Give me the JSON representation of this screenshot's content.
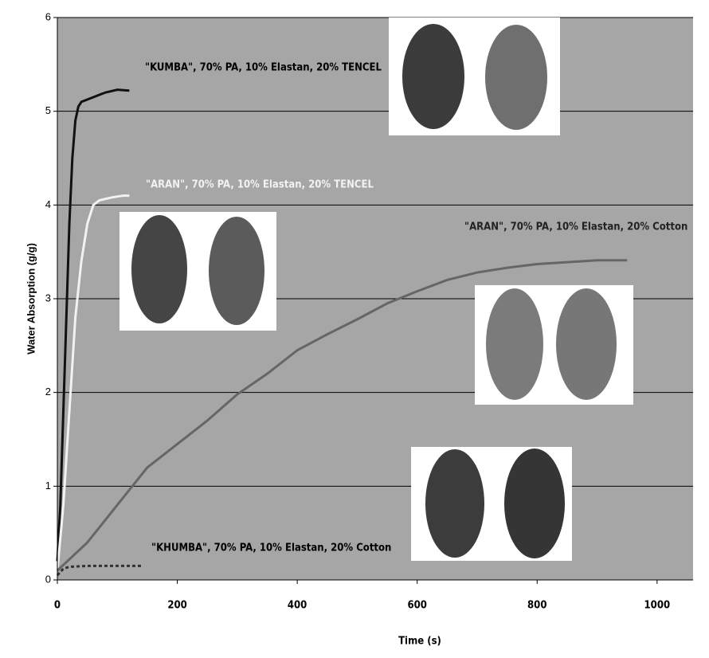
{
  "chart_data": {
    "type": "line",
    "x_label": "Time (s)",
    "y_label": "Water Absorption (g/g)",
    "xlim": [
      0,
      1060
    ],
    "ylim": [
      0,
      6
    ],
    "xticks": [
      0,
      200,
      400,
      600,
      800,
      1000
    ],
    "yticks": [
      0,
      1,
      2,
      3,
      4,
      5,
      6
    ],
    "grid": true,
    "series": [
      {
        "name": "\"KUMBA\", 70% PA, 10% Elastan, 20% TENCEL",
        "color": "#111111",
        "x": [
          0,
          5,
          10,
          15,
          20,
          25,
          30,
          35,
          40,
          60,
          80,
          100,
          120
        ],
        "values": [
          0.2,
          0.8,
          1.8,
          2.8,
          3.8,
          4.5,
          4.9,
          5.05,
          5.1,
          5.15,
          5.2,
          5.23,
          5.22
        ]
      },
      {
        "name": "\"ARAN\", 70% PA, 10% Elastan, 20% TENCEL",
        "color": "#f2f2f2",
        "x": [
          0,
          10,
          20,
          30,
          40,
          50,
          60,
          70,
          90,
          110,
          120
        ],
        "values": [
          0.1,
          0.8,
          1.8,
          2.8,
          3.4,
          3.8,
          4.0,
          4.05,
          4.08,
          4.1,
          4.1
        ]
      },
      {
        "name": "\"ARAN\", 70% PA, 10% Elastan, 20% Cotton",
        "color": "#666666",
        "x": [
          0,
          50,
          100,
          150,
          200,
          250,
          300,
          350,
          400,
          450,
          500,
          550,
          600,
          650,
          700,
          750,
          800,
          850,
          900,
          950
        ],
        "values": [
          0.1,
          0.4,
          0.8,
          1.2,
          1.45,
          1.7,
          1.98,
          2.2,
          2.45,
          2.62,
          2.78,
          2.95,
          3.08,
          3.2,
          3.28,
          3.33,
          3.37,
          3.39,
          3.41,
          3.41
        ]
      },
      {
        "name": "\"KHUMBA\", 70% PA, 10% Elastan, 20% Cotton",
        "color": "#333333",
        "x": [
          0,
          10,
          20,
          50,
          100,
          140
        ],
        "values": [
          0.05,
          0.12,
          0.14,
          0.15,
          0.15,
          0.15
        ]
      }
    ]
  }
}
